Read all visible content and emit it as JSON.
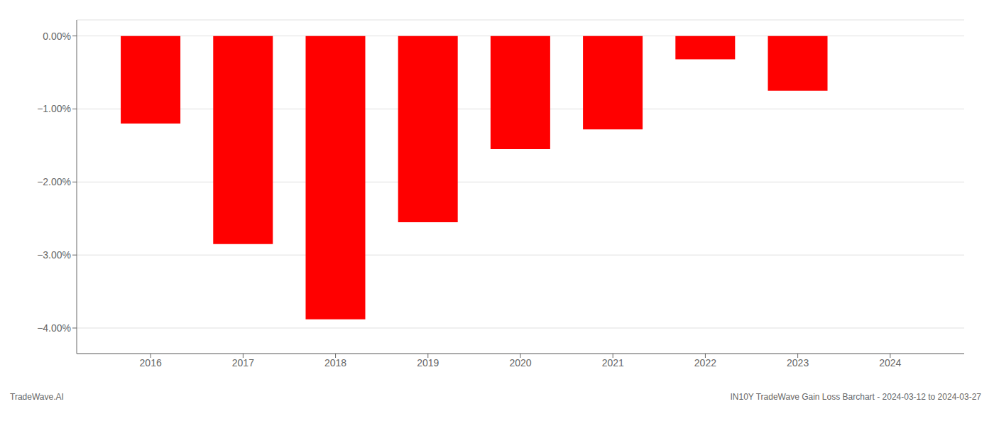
{
  "chart_data": {
    "type": "bar",
    "x": [
      2016,
      2017,
      2018,
      2019,
      2020,
      2021,
      2022,
      2023
    ],
    "values": [
      -1.2,
      -2.85,
      -3.88,
      -2.55,
      -1.55,
      -1.28,
      -0.32,
      -0.75
    ],
    "color": "#ff0000",
    "xlim": [
      2015.2,
      2024.8
    ],
    "xticks": [
      2016,
      2017,
      2018,
      2019,
      2020,
      2021,
      2022,
      2023,
      2024
    ],
    "ylim": [
      -4.35,
      0.22
    ],
    "yticks": [
      {
        "value": 0.0,
        "label": "0.00%"
      },
      {
        "value": -1.0,
        "label": "−1.00%"
      },
      {
        "value": -2.0,
        "label": "−2.00%"
      },
      {
        "value": -3.0,
        "label": "−3.00%"
      },
      {
        "value": -4.0,
        "label": "−4.00%"
      }
    ],
    "grid": true,
    "annotations": [
      "TradeWave.AI",
      "IN10Y TradeWave Gain Loss Barchart - 2024-03-12 to 2024-03-27"
    ]
  }
}
